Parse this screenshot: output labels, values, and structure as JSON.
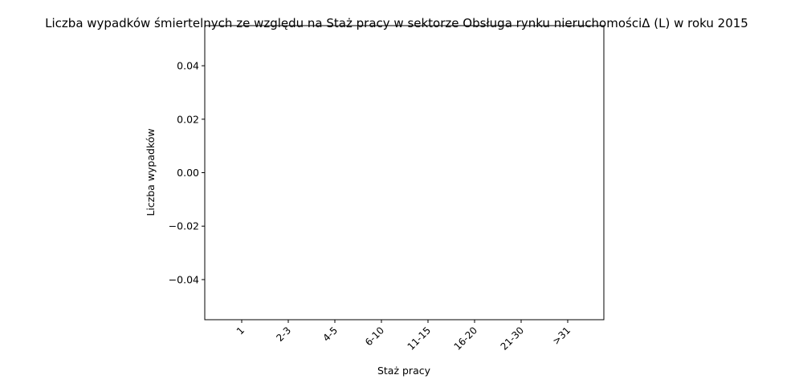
{
  "chart_data": {
    "type": "bar",
    "title": "Liczba wypadków śmiertelnych ze względu na Staż pracy w sektorze  Obsługa rynku nieruchomościΔ  (L) w roku 2015",
    "xlabel": "Staż pracy",
    "ylabel": "Liczba wypadków",
    "categories": [
      "1",
      "2-3",
      "4-5",
      "6-10",
      "11-15",
      "16-20",
      "21-30",
      ">31"
    ],
    "values": [
      0,
      0,
      0,
      0,
      0,
      0,
      0,
      0
    ],
    "ylim": [
      -0.055,
      0.055
    ],
    "yticks": [
      -0.04,
      -0.02,
      0.0,
      0.02,
      0.04
    ],
    "ytick_labels": [
      "−0.04",
      "−0.02",
      "0.00",
      "0.02",
      "0.04"
    ],
    "grid": false,
    "legend": "none",
    "bar_color": "#1f77b4"
  }
}
